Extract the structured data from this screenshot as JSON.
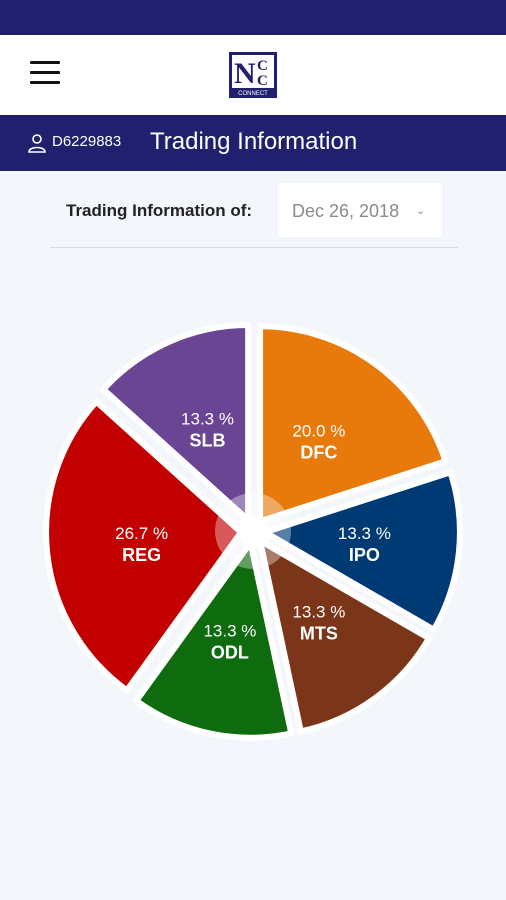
{
  "header": {
    "logo_text": "NCC CONNECT"
  },
  "subheader": {
    "user_id": "D6229883",
    "title": "Trading Information"
  },
  "filter": {
    "label": "Trading Information of:",
    "date": "Dec 26, 2018"
  },
  "chart_data": {
    "type": "pie",
    "title": "",
    "slices": [
      {
        "label": "DFC",
        "value": 20.0,
        "pct_text": "20.0 %",
        "color": "#e77a0b"
      },
      {
        "label": "IPO",
        "value": 13.3,
        "pct_text": "13.3 %",
        "color": "#003a75"
      },
      {
        "label": "MTS",
        "value": 13.3,
        "pct_text": "13.3 %",
        "color": "#7b3518"
      },
      {
        "label": "ODL",
        "value": 13.3,
        "pct_text": "13.3 %",
        "color": "#0e6b0e"
      },
      {
        "label": "REG",
        "value": 26.7,
        "pct_text": "26.7 %",
        "color": "#c20000"
      },
      {
        "label": "SLB",
        "value": 13.3,
        "pct_text": "13.3 %",
        "color": "#6a4593"
      }
    ]
  }
}
